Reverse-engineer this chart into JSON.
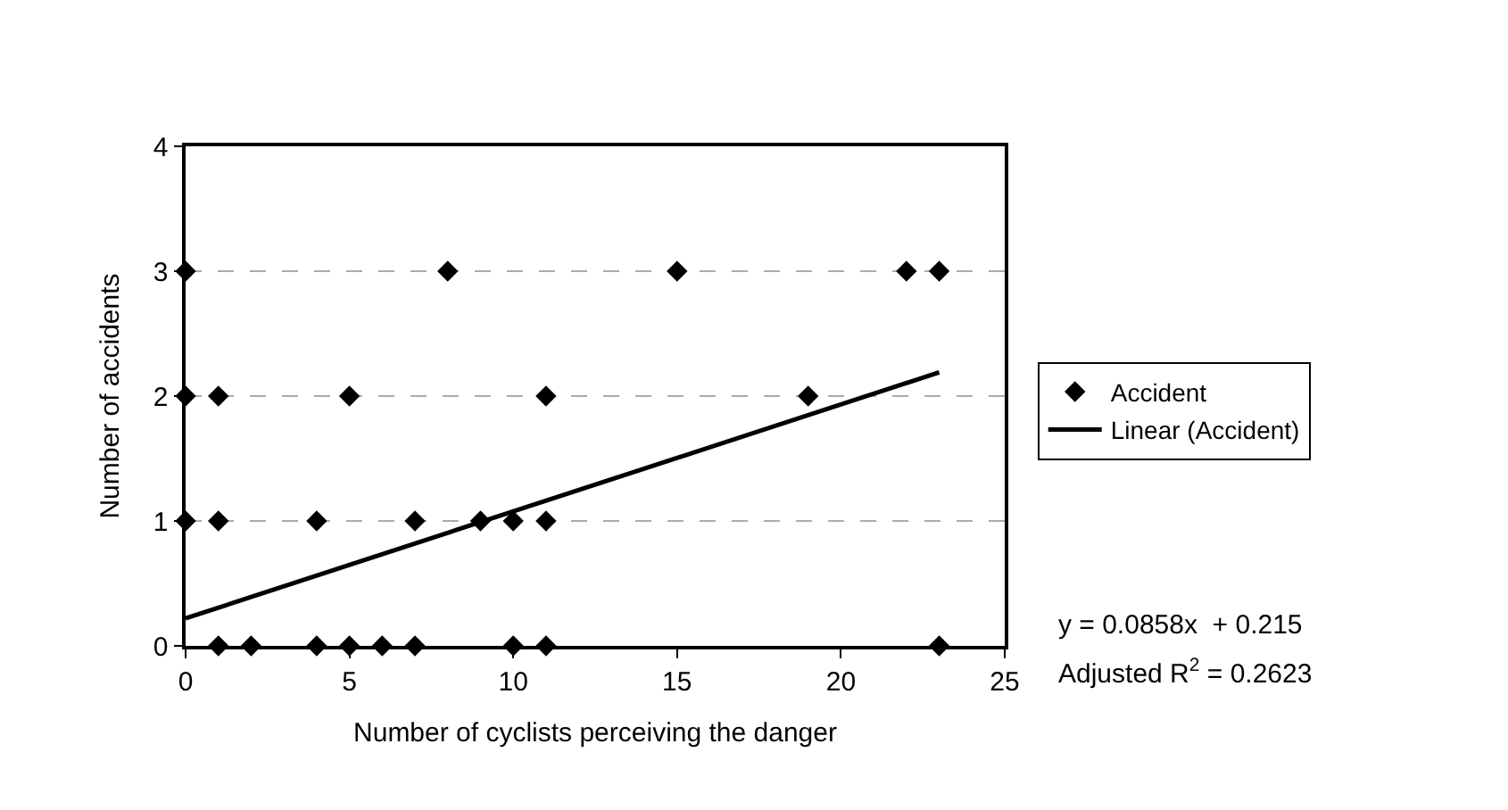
{
  "chart_data": {
    "type": "scatter",
    "xlabel": "Number of cyclists perceiving the danger",
    "ylabel": "Number of accidents",
    "series": [
      {
        "name": "Accident",
        "color": "#000000",
        "marker": "diamond",
        "x": [
          0,
          8,
          15,
          22,
          23,
          0,
          1,
          5,
          11,
          19,
          0,
          1,
          4,
          7,
          9,
          10,
          11,
          1,
          2,
          4,
          5,
          6,
          7,
          10,
          11,
          23
        ],
        "values": [
          3,
          3,
          3,
          3,
          3,
          2,
          2,
          2,
          2,
          2,
          1,
          1,
          1,
          1,
          1,
          1,
          1,
          0,
          0,
          0,
          0,
          0,
          0,
          0,
          0,
          0
        ]
      },
      {
        "name": "Linear (Accident)",
        "type": "line",
        "color": "#000000",
        "line_style": "solid",
        "x": [
          0,
          23
        ],
        "values": [
          0.22,
          2.19
        ]
      }
    ],
    "xlim": [
      0,
      25
    ],
    "xticks": [
      0,
      5,
      10,
      15,
      20,
      25
    ],
    "ylim": [
      0,
      4
    ],
    "yticks": [
      0,
      1,
      2,
      3,
      4
    ],
    "grid": "y",
    "legend": "right",
    "annotations": [
      "y = 0.0858x  + 0.215",
      "Adjusted R$^{2}$ = 0.2623"
    ]
  }
}
